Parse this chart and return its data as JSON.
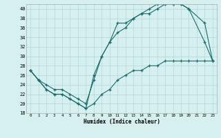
{
  "xlabel": "Humidex (Indice chaleur)",
  "bg_color": "#d6f0f0",
  "grid_color": "#b0d8d8",
  "line_color": "#1a6b6b",
  "xlim": [
    -0.5,
    23.5
  ],
  "ylim": [
    18,
    41
  ],
  "xticks": [
    0,
    1,
    2,
    3,
    4,
    5,
    6,
    7,
    8,
    9,
    10,
    11,
    12,
    13,
    14,
    15,
    16,
    17,
    18,
    19,
    20,
    21,
    22,
    23
  ],
  "yticks": [
    18,
    20,
    22,
    24,
    26,
    28,
    30,
    32,
    34,
    36,
    38,
    40
  ],
  "line1_x": [
    0,
    1,
    2,
    3,
    4,
    5,
    6,
    7,
    8,
    9,
    10,
    11,
    12,
    13,
    14,
    15,
    16,
    17,
    18,
    19,
    20,
    22,
    23
  ],
  "line1_y": [
    27,
    25,
    23,
    22,
    22,
    21,
    20,
    19,
    26,
    30,
    33,
    37,
    37,
    38,
    39,
    39,
    40,
    41,
    41,
    41,
    40,
    37,
    29
  ],
  "line2_x": [
    0,
    1,
    2,
    3,
    4,
    5,
    6,
    7,
    8,
    9,
    10,
    11,
    12,
    13,
    14,
    15,
    16,
    17,
    18,
    19,
    20,
    22,
    23
  ],
  "line2_y": [
    27,
    25,
    24,
    23,
    23,
    22,
    21,
    20,
    25,
    30,
    33,
    35,
    36,
    38,
    39,
    40,
    41,
    41,
    41,
    41,
    40,
    33,
    29
  ],
  "line3_x": [
    0,
    1,
    2,
    3,
    4,
    5,
    6,
    7,
    8,
    9,
    10,
    11,
    12,
    13,
    14,
    15,
    16,
    17,
    18,
    19,
    20,
    21,
    22,
    23
  ],
  "line3_y": [
    27,
    25,
    23,
    22,
    22,
    21,
    20,
    19,
    20,
    22,
    23,
    25,
    26,
    27,
    27,
    28,
    28,
    29,
    29,
    29,
    29,
    29,
    29,
    29
  ]
}
